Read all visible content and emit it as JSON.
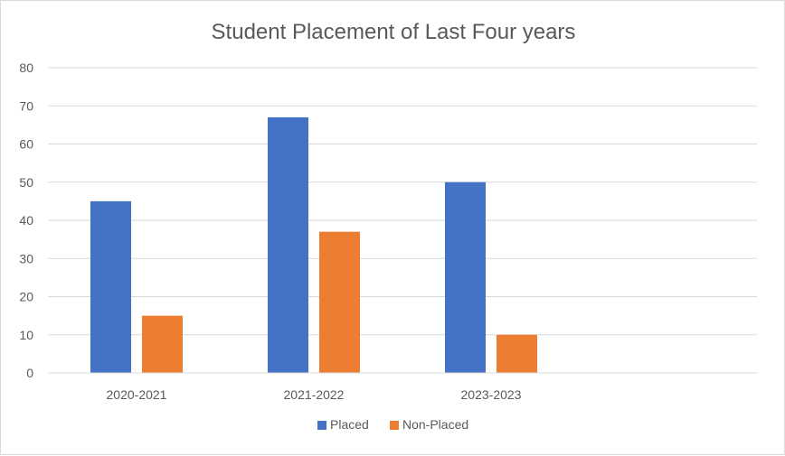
{
  "chart_data": {
    "type": "bar",
    "title": "Student Placement of Last Four years",
    "xlabel": "",
    "ylabel": "",
    "categories": [
      "2020-2021",
      "2021-2022",
      "2023-2023",
      ""
    ],
    "series": [
      {
        "name": "Placed",
        "color": "#4472c4",
        "values": [
          45,
          67,
          50,
          null
        ]
      },
      {
        "name": "Non-Placed",
        "color": "#ed7d31",
        "values": [
          15,
          37,
          10,
          null
        ]
      }
    ],
    "ylim": [
      0,
      80
    ],
    "yticks": [
      0,
      10,
      20,
      30,
      40,
      50,
      60,
      70,
      80
    ],
    "grid": true,
    "legend_position": "bottom"
  }
}
